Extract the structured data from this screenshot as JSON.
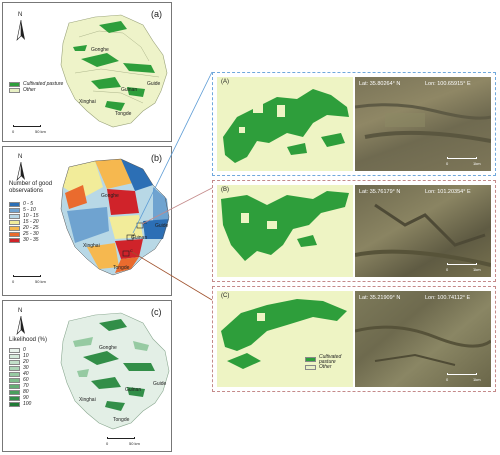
{
  "panel_a": {
    "label": "(a)",
    "towns": [
      "Gonghe",
      "Guide",
      "Guinan",
      "Xinghai",
      "Tongde"
    ],
    "legend": [
      {
        "label": "Cultivated pasture",
        "color": "#2e9e3b"
      },
      {
        "label": "Other",
        "color": "#e8f0c4"
      }
    ],
    "scale": "50 km",
    "scale_zero": "0",
    "north": "N"
  },
  "panel_b": {
    "label": "(b)",
    "towns": [
      "Gonghe",
      "Guide",
      "Guinan",
      "Xinghai",
      "Tongde"
    ],
    "legend_title": "Number of good observations",
    "legend": [
      {
        "label": "0 - 5",
        "color": "#2c6fb5"
      },
      {
        "label": "5 - 10",
        "color": "#6fa3d0"
      },
      {
        "label": "10 - 15",
        "color": "#b8d8e6"
      },
      {
        "label": "15 - 20",
        "color": "#f2ec9a"
      },
      {
        "label": "20 - 25",
        "color": "#f6b84f"
      },
      {
        "label": "25 - 30",
        "color": "#ea6b2e"
      },
      {
        "label": "30 - 35",
        "color": "#d0232a"
      }
    ],
    "scale": "50 km",
    "scale_zero": "0",
    "north": "N",
    "zoom_labels": [
      "A",
      "B",
      "C"
    ]
  },
  "panel_c": {
    "label": "(c)",
    "towns": [
      "Gonghe",
      "Guide",
      "Guinan",
      "Xinghai",
      "Tongde"
    ],
    "legend_title": "Likelihood (%)",
    "legend": [
      {
        "label": "0",
        "color": "#eaf3ec"
      },
      {
        "label": "10",
        "color": "#d6eadb"
      },
      {
        "label": "20",
        "color": "#c2e0c9"
      },
      {
        "label": "30",
        "color": "#acd5b6"
      },
      {
        "label": "40",
        "color": "#96caa2"
      },
      {
        "label": "60",
        "color": "#7dbd8b"
      },
      {
        "label": "70",
        "color": "#64af75"
      },
      {
        "label": "80",
        "color": "#4a9f5d"
      },
      {
        "label": "90",
        "color": "#328e48"
      },
      {
        "label": "100",
        "color": "#1f7a36"
      }
    ],
    "scale": "50 km",
    "scale_zero": "0",
    "north": "N"
  },
  "zooms": [
    {
      "label": "(A)",
      "lat": "Lat: 35.80264° N",
      "lon": "Lon: 100.65915° E",
      "scale": "1km",
      "scale_zero": "0",
      "border": "#6fa8dc"
    },
    {
      "label": "(B)",
      "lat": "Lat: 35.76179° N",
      "lon": "Lon: 101.20354° E",
      "scale": "1km",
      "scale_zero": "0",
      "border": "#c48a8a"
    },
    {
      "label": "(C)",
      "lat": "Lat: 35.21909° N",
      "lon": "Lon: 100.74112° E",
      "scale": "1km",
      "scale_zero": "0",
      "border": "#c48a8a"
    }
  ],
  "zoom_legend": [
    {
      "label": "Cultivated pasture",
      "color": "#2e9e3b"
    },
    {
      "label": "Other",
      "color": "#e8f0c4"
    }
  ]
}
